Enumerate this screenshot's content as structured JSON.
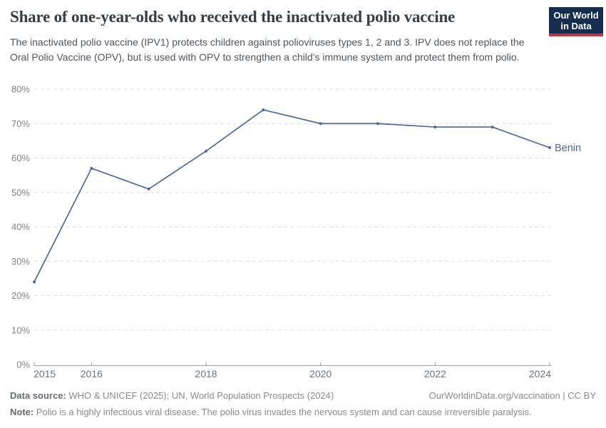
{
  "header": {
    "title": "Share of one-year-olds who received the inactivated polio vaccine",
    "subtitle": "The inactivated polio vaccine (IPV1) protects children against polioviruses types 1, 2 and 3. IPV does not replace the Oral Polio Vaccine (OPV), but is used with OPV to strengthen a child’s immune system and protect them from polio.",
    "logo": {
      "line1": "Our World",
      "line2": "in Data",
      "bg_color": "#152d4f",
      "accent_color": "#bf363e"
    }
  },
  "chart_data": {
    "type": "line",
    "title": "Share of one-year-olds who received the inactivated polio vaccine",
    "xlabel": "",
    "ylabel": "",
    "xlim": [
      2015,
      2024
    ],
    "ylim": [
      0,
      80
    ],
    "y_suffix": "%",
    "yticks": [
      0,
      10,
      20,
      30,
      40,
      50,
      60,
      70,
      80
    ],
    "xticks": [
      2015,
      2016,
      2018,
      2020,
      2022,
      2024
    ],
    "grid": "horizontal-dashed",
    "legend_position": "end-of-line",
    "grid_color": "#dcdcdc",
    "axis_color": "#9aa0a5",
    "series": [
      {
        "name": "Benin",
        "color": "#4c6a9e",
        "x": [
          2015,
          2016,
          2017,
          2018,
          2019,
          2020,
          2021,
          2022,
          2023,
          2024
        ],
        "values": [
          24,
          57,
          51,
          62,
          74,
          70,
          70,
          69,
          69,
          63
        ]
      }
    ]
  },
  "footer": {
    "source_label": "Data source:",
    "source_text": "WHO & UNICEF (2025); UN, World Population Prospects (2024)",
    "note_label": "Note:",
    "note_text": "Polio is a highly infectious viral disease. The polio virus invades the nervous system and can cause irreversible paralysis.",
    "rights": "OurWorldinData.org/vaccination | CC BY"
  }
}
